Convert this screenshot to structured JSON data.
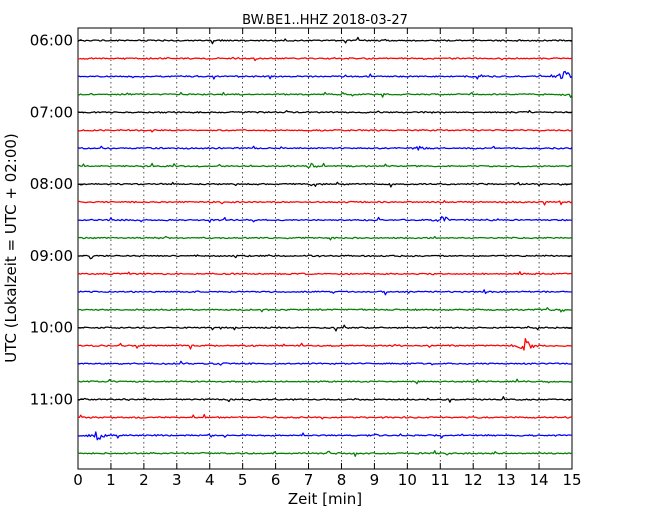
{
  "chart_data": {
    "type": "line",
    "title": "BW.BE1..HHZ 2018-03-27",
    "xlabel": "Zeit  [min]",
    "ylabel": "UTC (Lokalzeit = UTC + 02:00)",
    "xlim": [
      0,
      15
    ],
    "x_ticks": [
      "0",
      "1",
      "2",
      "3",
      "4",
      "5",
      "6",
      "7",
      "8",
      "9",
      "10",
      "11",
      "12",
      "13",
      "14",
      "15"
    ],
    "y_tick_labels": [
      "06:00",
      "07:00",
      "08:00",
      "09:00",
      "10:00",
      "11:00"
    ],
    "grid": true,
    "colors": [
      "#000000",
      "#ff0000",
      "#0000ff",
      "#008000"
    ],
    "trace_minutes": 15,
    "trace_count": 24,
    "events": [
      {
        "trace": 2,
        "minute": 14.8,
        "amplitude": "large",
        "color": "#0000ff"
      },
      {
        "trace": 10,
        "minute": 11.1,
        "amplitude": "medium",
        "color": "#0000ff"
      },
      {
        "trace": 7,
        "minute": 7.1,
        "amplitude": "small",
        "color": "#008000"
      },
      {
        "trace": 17,
        "minute": 13.6,
        "amplitude": "large",
        "color": "#008000"
      },
      {
        "trace": 22,
        "minute": 0.6,
        "amplitude": "large",
        "color": "#0000ff"
      },
      {
        "trace": 6,
        "minute": 10.4,
        "amplitude": "small",
        "color": "#0000ff"
      }
    ]
  }
}
